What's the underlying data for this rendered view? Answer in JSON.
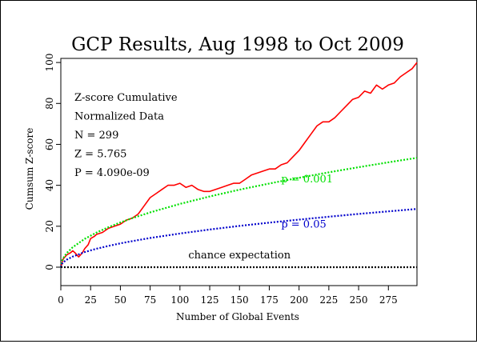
{
  "chart_data": {
    "type": "line",
    "title": "GCP Results, Aug 1998 to Oct 2009",
    "xlabel": "Number of Global Events",
    "ylabel": "Cumsum Z-score",
    "xlim": [
      0,
      299
    ],
    "ylim": [
      -9,
      102
    ],
    "xticks": [
      0,
      25,
      50,
      75,
      100,
      125,
      150,
      175,
      200,
      225,
      250,
      275
    ],
    "yticks": [
      0,
      20,
      40,
      60,
      80,
      100
    ],
    "grid": false,
    "stats": [
      "Z-score Cumulative",
      "Normalized Data",
      "N = 299",
      "Z = 5.765",
      "P = 4.090e-09"
    ],
    "colors": {
      "cumulative": "#ff0000",
      "p001": "#00e000",
      "p05": "#0000cc",
      "chance": "#000000"
    },
    "series": [
      {
        "key": "cumulative",
        "style": "solid",
        "x": [
          0,
          2,
          5,
          8,
          10,
          12,
          15,
          18,
          20,
          23,
          25,
          28,
          30,
          35,
          40,
          45,
          50,
          55,
          60,
          65,
          70,
          75,
          80,
          85,
          90,
          95,
          100,
          105,
          110,
          115,
          120,
          125,
          130,
          135,
          140,
          145,
          150,
          155,
          160,
          165,
          170,
          175,
          180,
          185,
          190,
          195,
          200,
          205,
          210,
          215,
          220,
          225,
          230,
          235,
          240,
          245,
          250,
          255,
          260,
          265,
          270,
          275,
          280,
          285,
          290,
          295,
          299
        ],
        "values": [
          0,
          4,
          6,
          7,
          8,
          7,
          5,
          7,
          9,
          11,
          14,
          15,
          16,
          17,
          19,
          20,
          21,
          23,
          24,
          26,
          30,
          34,
          36,
          38,
          40,
          40,
          41,
          39,
          40,
          38,
          37,
          37,
          38,
          39,
          40,
          41,
          41,
          43,
          45,
          46,
          47,
          48,
          48,
          50,
          51,
          54,
          57,
          61,
          65,
          69,
          71,
          71,
          73,
          76,
          79,
          82,
          83,
          86,
          85,
          89,
          87,
          89,
          90,
          93,
          95,
          97,
          100
        ]
      },
      {
        "key": "p001",
        "style": "dotted",
        "label": "p = 0.001",
        "x": [
          0,
          1,
          2,
          5,
          10,
          20,
          30,
          40,
          50,
          60,
          75,
          100,
          125,
          150,
          175,
          200,
          225,
          250,
          275,
          299
        ],
        "values": [
          0,
          3.09,
          4.37,
          6.91,
          9.77,
          13.82,
          16.92,
          19.54,
          21.85,
          23.93,
          26.76,
          30.9,
          34.55,
          37.85,
          40.88,
          43.7,
          46.35,
          48.86,
          51.24,
          53.43
        ]
      },
      {
        "key": "p05",
        "style": "dotted",
        "label": "p = 0.05",
        "x": [
          0,
          1,
          2,
          5,
          10,
          20,
          30,
          40,
          50,
          60,
          75,
          100,
          125,
          150,
          175,
          200,
          225,
          250,
          275,
          299
        ],
        "values": [
          0,
          1.64,
          2.33,
          3.68,
          5.2,
          7.36,
          9.01,
          10.4,
          11.63,
          12.74,
          14.24,
          16.45,
          18.39,
          20.14,
          21.76,
          23.26,
          24.67,
          26.01,
          27.28,
          28.44
        ]
      },
      {
        "key": "chance",
        "style": "dotted",
        "label": "chance expectation",
        "x": [
          0,
          299
        ],
        "values": [
          0,
          0
        ]
      }
    ]
  }
}
